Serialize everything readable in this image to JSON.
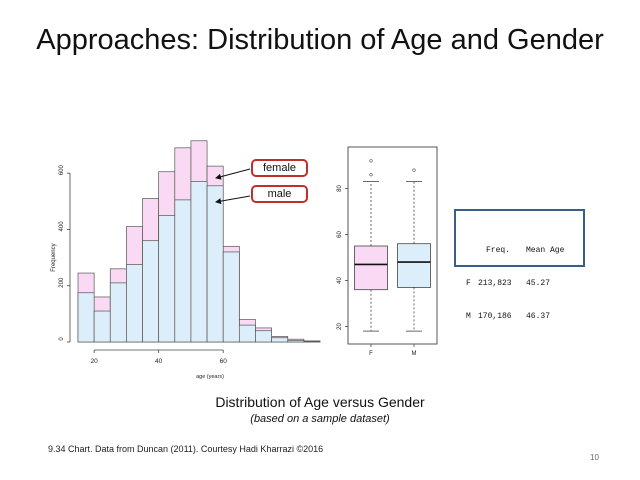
{
  "slide": {
    "title": "Approaches: Distribution of Age and Gender",
    "caption": "Distribution of Age versus Gender",
    "subcaption": "(based on a sample dataset)",
    "footer": "9.34 Chart. Data from Duncan (2011). Courtesy Hadi Kharrazi ©2016",
    "page_number": "10"
  },
  "colors": {
    "female": "#f9d9f3",
    "male": "#ddeefb",
    "callout_border": "#c0302a",
    "table_border": "#3a5e8c"
  },
  "callouts": {
    "female": "female",
    "male": "male"
  },
  "summary_table": {
    "headers": [
      "",
      "Freq.",
      "Mean Age"
    ],
    "rows": [
      [
        "F",
        "213,823",
        "45.27"
      ],
      [
        "M",
        "170,186",
        "46.37"
      ]
    ]
  },
  "chart_data": [
    {
      "type": "bar",
      "subtype": "overlaid-histogram",
      "xlabel": "age (years)",
      "ylabel": "Frequency",
      "xlim": [
        15,
        90
      ],
      "ylim": [
        0,
        700
      ],
      "x_ticks": [
        20,
        40,
        60
      ],
      "y_ticks": [
        0,
        200,
        400,
        600
      ],
      "bin_width": 5,
      "bin_starts": [
        15,
        20,
        25,
        30,
        35,
        40,
        45,
        50,
        55,
        60,
        65,
        70,
        75,
        80,
        85
      ],
      "series": [
        {
          "name": "female",
          "values": [
            245,
            160,
            260,
            410,
            510,
            605,
            690,
            715,
            625,
            340,
            80,
            50,
            20,
            10,
            4
          ]
        },
        {
          "name": "male",
          "values": [
            175,
            110,
            210,
            275,
            360,
            450,
            505,
            570,
            555,
            320,
            60,
            40,
            15,
            5,
            2
          ]
        }
      ]
    },
    {
      "type": "box",
      "categories": [
        "F",
        "M"
      ],
      "y_ticks": [
        20,
        40,
        60,
        80
      ],
      "ylim": [
        15,
        95
      ],
      "boxes": [
        {
          "name": "F",
          "min": 18,
          "q1": 36,
          "median": 47,
          "q3": 55,
          "max": 83,
          "outliers": [
            92,
            86
          ]
        },
        {
          "name": "M",
          "min": 18,
          "q1": 37,
          "median": 48,
          "q3": 56,
          "max": 83,
          "outliers": [
            88
          ]
        }
      ]
    }
  ]
}
